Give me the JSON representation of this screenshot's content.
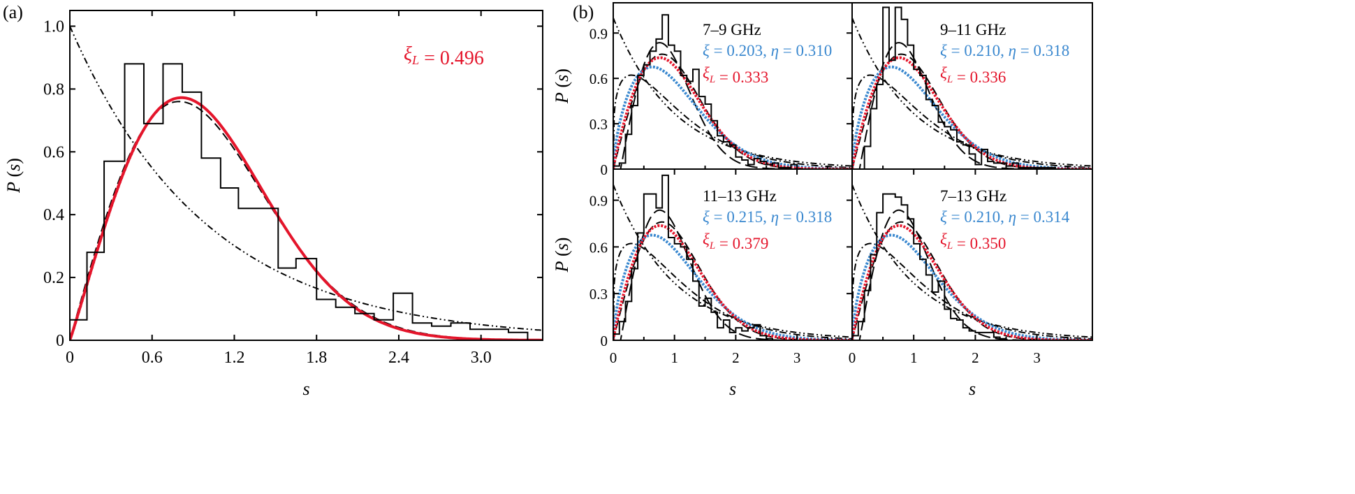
{
  "colors": {
    "axis": "#000000",
    "hist": "#000000",
    "red": "#e4152b",
    "blue": "#3a88cf"
  },
  "chart_data": [
    {
      "panel_label": "(a)",
      "type": "line",
      "xlabel": "s",
      "ylabel": "P (s)",
      "xlim": [
        0,
        3.45
      ],
      "ylim": [
        0,
        1.05
      ],
      "xticks": [
        "0",
        "0.6",
        "1.2",
        "1.8",
        "2.4",
        "3.0"
      ],
      "yticks": [
        "0",
        "0.2",
        "0.4",
        "0.6",
        "0.8",
        "1.0"
      ],
      "annotations": [
        {
          "text": "ξL = 0.496",
          "color": "red"
        }
      ],
      "histogram": {
        "edges": [
          0,
          0.125,
          0.25,
          0.4,
          0.54,
          0.68,
          0.82,
          0.96,
          1.1,
          1.23,
          1.52,
          1.65,
          1.8,
          1.94,
          2.08,
          2.22,
          2.36,
          2.5,
          2.64,
          2.78,
          2.92,
          3.06,
          3.2,
          3.34
        ],
        "values": [
          0.065,
          0.28,
          0.57,
          0.88,
          0.69,
          0.88,
          0.79,
          0.58,
          0.485,
          0.42,
          0.23,
          0.26,
          0.13,
          0.105,
          0.085,
          0.065,
          0.15,
          0.055,
          0.045,
          0.055,
          0.035,
          0.035,
          0.025
        ]
      },
      "curves": [
        {
          "kind": "poisson",
          "style": "dash-dot-dot",
          "color": "black"
        },
        {
          "kind": "wigner",
          "style": "dashed",
          "color": "black"
        },
        {
          "kind": "brody",
          "xi": 0.496,
          "style": "solid-dotted",
          "color": "red"
        }
      ]
    },
    {
      "panel_label": "(b)",
      "subplot": "7–9 GHz",
      "type": "line",
      "xlabel": "",
      "ylabel": "P (s)",
      "xlim": [
        0,
        3.9
      ],
      "ylim": [
        0,
        1.1
      ],
      "xticks": [],
      "yticks": [
        "0",
        "0.3",
        "0.6",
        "0.9"
      ],
      "annotations": [
        {
          "text": "7–9 GHz",
          "color": "black"
        },
        {
          "text": "ξ = 0.203, η = 0.310",
          "color": "blue"
        },
        {
          "text": "ξL = 0.333",
          "color": "red"
        }
      ],
      "histogram": {
        "edges": [
          0,
          0.1,
          0.2,
          0.3,
          0.4,
          0.5,
          0.6,
          0.7,
          0.8,
          0.9,
          1.0,
          1.1,
          1.2,
          1.3,
          1.4,
          1.5,
          1.6,
          1.7,
          1.8,
          1.9,
          2.0,
          2.1,
          2.2,
          2.3,
          2.4,
          2.5,
          2.6,
          2.7,
          2.8,
          2.9,
          3.0
        ],
        "values": [
          0.02,
          0.04,
          0.23,
          0.42,
          0.62,
          0.69,
          0.78,
          0.86,
          1.02,
          0.82,
          0.78,
          0.62,
          0.58,
          0.66,
          0.48,
          0.43,
          0.32,
          0.22,
          0.18,
          0.16,
          0.08,
          0.06,
          0.03,
          0.07,
          0.05,
          0.03,
          0.04,
          0.01,
          0.01,
          0.03
        ]
      },
      "curves": [
        {
          "kind": "poisson",
          "style": "dash-dot-dot",
          "color": "black"
        },
        {
          "kind": "wigner",
          "style": "dashed",
          "color": "black"
        },
        {
          "kind": "goe-scaled",
          "style": "long-dash",
          "color": "black"
        },
        {
          "kind": "brody-dash-dot",
          "style": "dash-dot",
          "color": "black"
        },
        {
          "kind": "shifted",
          "xi": 0.203,
          "eta": 0.31,
          "style": "dotted",
          "color": "blue"
        },
        {
          "kind": "brody",
          "xi": 0.333,
          "style": "dotted",
          "color": "red"
        }
      ]
    },
    {
      "subplot": "9–11 GHz",
      "type": "line",
      "xlabel": "",
      "ylabel": "",
      "xlim": [
        0,
        3.9
      ],
      "ylim": [
        0,
        1.1
      ],
      "xticks": [],
      "yticks": [],
      "annotations": [
        {
          "text": "9–11 GHz",
          "color": "black"
        },
        {
          "text": "ξ = 0.210, η = 0.318",
          "color": "blue"
        },
        {
          "text": "ξL = 0.336",
          "color": "red"
        }
      ],
      "histogram": {
        "edges": [
          0.2,
          0.3,
          0.4,
          0.5,
          0.6,
          0.7,
          0.8,
          0.9,
          1.0,
          1.1,
          1.2,
          1.3,
          1.4,
          1.5,
          1.6,
          1.7,
          1.8,
          1.9,
          2.0,
          2.1,
          2.2,
          2.3,
          2.4,
          2.5,
          2.6,
          2.7,
          2.8,
          2.9,
          3.0,
          3.1,
          3.2,
          3.3
        ],
        "values": [
          0.15,
          0.4,
          0.56,
          1.07,
          0.72,
          1.07,
          0.99,
          0.82,
          0.66,
          0.62,
          0.46,
          0.42,
          0.31,
          0.28,
          0.26,
          0.18,
          0.16,
          0.1,
          0.03,
          0.13,
          0.05,
          0.04,
          0.04,
          0.02,
          0.04,
          0.01,
          0.01,
          0.01,
          0.01,
          0.01,
          0.01
        ]
      },
      "curves": [
        {
          "kind": "poisson",
          "style": "dash-dot-dot",
          "color": "black"
        },
        {
          "kind": "wigner",
          "style": "dashed",
          "color": "black"
        },
        {
          "kind": "goe-scaled",
          "style": "long-dash",
          "color": "black"
        },
        {
          "kind": "brody-dash-dot",
          "style": "dash-dot",
          "color": "black"
        },
        {
          "kind": "shifted",
          "xi": 0.21,
          "eta": 0.318,
          "style": "dotted",
          "color": "blue"
        },
        {
          "kind": "brody",
          "xi": 0.336,
          "style": "dotted",
          "color": "red"
        }
      ]
    },
    {
      "subplot": "11–13 GHz",
      "type": "line",
      "xlabel": "s",
      "ylabel": "P (s)",
      "xlim": [
        0,
        3.9
      ],
      "ylim": [
        0,
        1.1
      ],
      "xticks": [
        "0",
        "1",
        "2",
        "3"
      ],
      "yticks": [
        "0",
        "0.3",
        "0.6",
        "0.9"
      ],
      "annotations": [
        {
          "text": "11–13 GHz",
          "color": "black"
        },
        {
          "text": "ξ = 0.215, η = 0.318",
          "color": "blue"
        },
        {
          "text": "ξL = 0.379",
          "color": "red"
        }
      ],
      "histogram": {
        "edges": [
          0,
          0.1,
          0.2,
          0.3,
          0.4,
          0.5,
          0.6,
          0.7,
          0.8,
          0.9,
          1.0,
          1.1,
          1.2,
          1.3,
          1.4,
          1.5,
          1.6,
          1.7,
          1.8,
          1.9,
          2.0,
          2.1,
          2.2,
          2.3,
          2.4,
          2.5,
          2.6
        ],
        "values": [
          0.04,
          0.12,
          0.25,
          0.46,
          0.69,
          0.94,
          0.94,
          0.85,
          1.06,
          0.66,
          0.62,
          0.6,
          0.52,
          0.38,
          0.22,
          0.27,
          0.18,
          0.08,
          0.13,
          0.05,
          0.08,
          0.06,
          0.08,
          0.1,
          0.03,
          0.01
        ]
      },
      "curves": [
        {
          "kind": "poisson",
          "style": "dash-dot-dot",
          "color": "black"
        },
        {
          "kind": "wigner",
          "style": "dashed",
          "color": "black"
        },
        {
          "kind": "goe-scaled",
          "style": "long-dash",
          "color": "black"
        },
        {
          "kind": "brody-dash-dot",
          "style": "dash-dot",
          "color": "black"
        },
        {
          "kind": "shifted",
          "xi": 0.215,
          "eta": 0.318,
          "style": "dotted",
          "color": "blue"
        },
        {
          "kind": "brody",
          "xi": 0.379,
          "style": "dotted",
          "color": "red"
        }
      ]
    },
    {
      "subplot": "7–13 GHz",
      "type": "line",
      "xlabel": "s",
      "ylabel": "",
      "xlim": [
        0,
        3.9
      ],
      "ylim": [
        0,
        1.1
      ],
      "xticks": [
        "0",
        "1",
        "2",
        "3"
      ],
      "yticks": [],
      "annotations": [
        {
          "text": "7–13 GHz",
          "color": "black"
        },
        {
          "text": "ξ = 0.210, η = 0.314",
          "color": "blue"
        },
        {
          "text": "ξL = 0.350",
          "color": "red"
        }
      ],
      "histogram": {
        "edges": [
          0,
          0.1,
          0.2,
          0.3,
          0.4,
          0.5,
          0.6,
          0.7,
          0.8,
          0.9,
          1.0,
          1.1,
          1.2,
          1.3,
          1.4,
          1.5,
          1.6,
          1.7,
          1.8,
          1.9,
          2.0,
          2.1,
          2.2,
          2.3,
          2.4,
          2.5
        ],
        "values": [
          0.03,
          0.12,
          0.32,
          0.55,
          0.82,
          0.94,
          0.94,
          0.92,
          0.87,
          0.78,
          0.62,
          0.52,
          0.42,
          0.31,
          0.38,
          0.2,
          0.14,
          0.13,
          0.08,
          0.06,
          0.05,
          0.05,
          0.05,
          0.02,
          0.01
        ]
      },
      "curves": [
        {
          "kind": "poisson",
          "style": "dash-dot-dot",
          "color": "black"
        },
        {
          "kind": "wigner",
          "style": "dashed",
          "color": "black"
        },
        {
          "kind": "goe-scaled",
          "style": "long-dash",
          "color": "black"
        },
        {
          "kind": "brody-dash-dot",
          "style": "dash-dot",
          "color": "black"
        },
        {
          "kind": "shifted",
          "xi": 0.21,
          "eta": 0.314,
          "style": "dotted",
          "color": "blue"
        },
        {
          "kind": "brody",
          "xi": 0.35,
          "style": "dotted",
          "color": "red"
        }
      ]
    }
  ]
}
